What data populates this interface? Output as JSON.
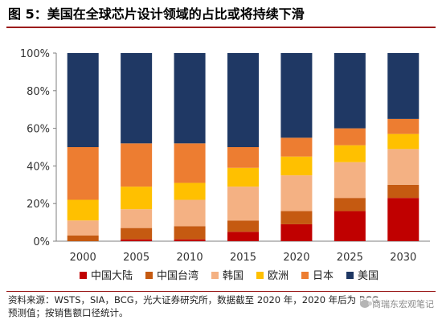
{
  "title": "图 5：美国在全球芯片设计领域的占比或将持续下滑",
  "footer": {
    "line1": "资料来源：WSTS，SIA，BCG，光大证券研究所，数据截至 2020 年，2020 年后为 BCG",
    "line2": "预测值；按销售额口径统计。"
  },
  "watermark": "商瑞东宏观笔记",
  "colors": {
    "中国大陆": "#c00000",
    "中国台湾": "#c55a11",
    "韩国": "#f4b183",
    "欧洲": "#ffc000",
    "日本": "#ed7d31",
    "美国": "#1f3864",
    "title_rule": "#9b1c1c"
  },
  "chart_data": {
    "type": "bar",
    "stacked": true,
    "title": "图 5：美国在全球芯片设计领域的占比或将持续下滑",
    "categories": [
      "2000",
      "2005",
      "2010",
      "2015",
      "2020",
      "2025",
      "2030"
    ],
    "y_tick_labels": [
      "0%",
      "20%",
      "40%",
      "60%",
      "80%",
      "100%"
    ],
    "ylim": [
      0,
      100
    ],
    "xlabel": "",
    "ylabel": "",
    "grid": false,
    "legend_position": "bottom",
    "series": [
      {
        "name": "中国大陆",
        "values": [
          0,
          1,
          1,
          5,
          9,
          16,
          23
        ]
      },
      {
        "name": "中国台湾",
        "values": [
          3,
          6,
          7,
          6,
          7,
          7,
          7
        ]
      },
      {
        "name": "韩国",
        "values": [
          8,
          10,
          14,
          18,
          19,
          19,
          19
        ]
      },
      {
        "name": "欧洲",
        "values": [
          11,
          12,
          9,
          10,
          10,
          9,
          8
        ]
      },
      {
        "name": "日本",
        "values": [
          28,
          23,
          21,
          11,
          10,
          9,
          8
        ]
      },
      {
        "name": "美国",
        "values": [
          50,
          48,
          48,
          50,
          45,
          40,
          35
        ]
      }
    ]
  }
}
